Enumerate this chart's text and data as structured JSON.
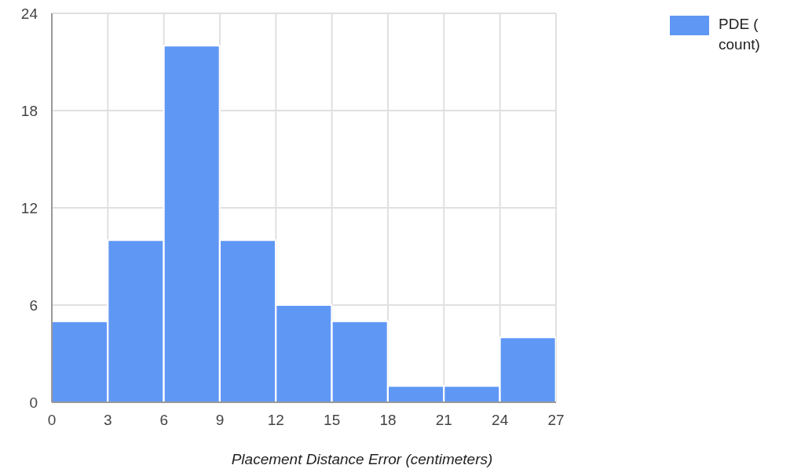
{
  "chart_data": {
    "type": "histogram",
    "xlabel": "Placement Distance Error (centimeters)",
    "bins": [
      0,
      3,
      6,
      9,
      12,
      15,
      18,
      21,
      24,
      27
    ],
    "series": [
      {
        "name": "PDE ( count)",
        "color": "#5f97f4",
        "values": [
          5,
          10,
          22,
          10,
          6,
          5,
          1,
          1,
          4
        ]
      }
    ],
    "xlim": [
      0,
      27
    ],
    "xticks": [
      0,
      3,
      6,
      9,
      12,
      15,
      18,
      21,
      24,
      27
    ],
    "ylim": [
      0,
      24
    ],
    "yticks": [
      0,
      6,
      12,
      18,
      24
    ],
    "grid": true,
    "legend": "top right"
  }
}
